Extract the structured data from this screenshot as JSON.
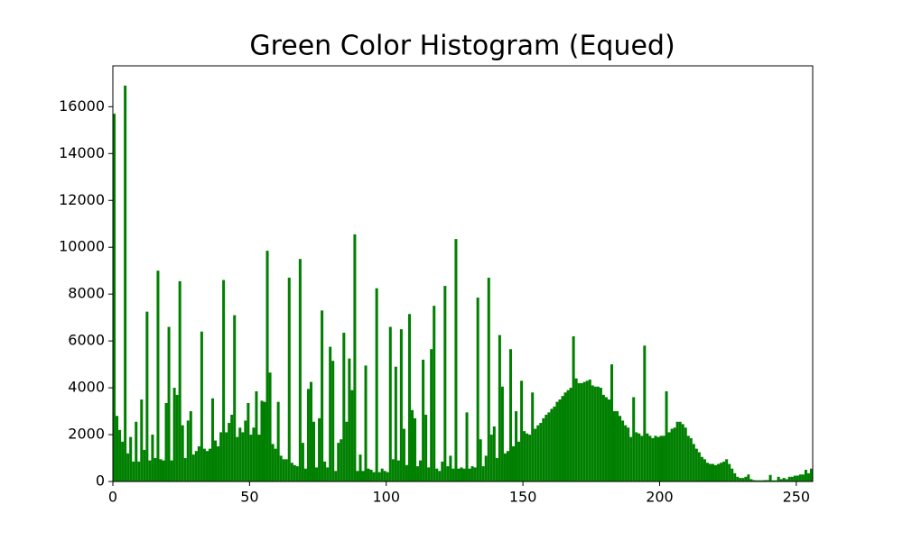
{
  "chart_data": {
    "type": "histogram",
    "title": "Green Color Histogram (Equed)",
    "color": "#008000",
    "bins": [
      0,
      1,
      2,
      3,
      4,
      5,
      6,
      7,
      8,
      9,
      10,
      11,
      12,
      13,
      14,
      15,
      16,
      17,
      18,
      19,
      20,
      21,
      22,
      23,
      24,
      25,
      26,
      27,
      28,
      29,
      30,
      31,
      32,
      33,
      34,
      35,
      36,
      37,
      38,
      39,
      40,
      41,
      42,
      43,
      44,
      45,
      46,
      47,
      48,
      49,
      50,
      51,
      52,
      53,
      54,
      55,
      56,
      57,
      58,
      59,
      60,
      61,
      62,
      63,
      64,
      65,
      66,
      67,
      68,
      69,
      70,
      71,
      72,
      73,
      74,
      75,
      76,
      77,
      78,
      79,
      80,
      81,
      82,
      83,
      84,
      85,
      86,
      87,
      88,
      89,
      90,
      91,
      92,
      93,
      94,
      95,
      96,
      97,
      98,
      99,
      100,
      101,
      102,
      103,
      104,
      105,
      106,
      107,
      108,
      109,
      110,
      111,
      112,
      113,
      114,
      115,
      116,
      117,
      118,
      119,
      120,
      121,
      122,
      123,
      124,
      125,
      126,
      127,
      128,
      129,
      130,
      131,
      132,
      133,
      134,
      135,
      136,
      137,
      138,
      139,
      140,
      141,
      142,
      143,
      144,
      145,
      146,
      147,
      148,
      149,
      150,
      151,
      152,
      153,
      154,
      155,
      156,
      157,
      158,
      159,
      160,
      161,
      162,
      163,
      164,
      165,
      166,
      167,
      168,
      169,
      170,
      171,
      172,
      173,
      174,
      175,
      176,
      177,
      178,
      179,
      180,
      181,
      182,
      183,
      184,
      185,
      186,
      187,
      188,
      189,
      190,
      191,
      192,
      193,
      194,
      195,
      196,
      197,
      198,
      199,
      200,
      201,
      202,
      203,
      204,
      205,
      206,
      207,
      208,
      209,
      210,
      211,
      212,
      213,
      214,
      215,
      216,
      217,
      218,
      219,
      220,
      221,
      222,
      223,
      224,
      225,
      226,
      227,
      228,
      229,
      230,
      231,
      232,
      233,
      234,
      235,
      236,
      237,
      238,
      239,
      240,
      241,
      242,
      243,
      244,
      245,
      246,
      247,
      248,
      249,
      250,
      251,
      252,
      253,
      254,
      255,
      256
    ],
    "counts": [
      15700,
      2800,
      2200,
      1700,
      16900,
      1200,
      1900,
      850,
      2550,
      850,
      3500,
      1350,
      7250,
      900,
      2000,
      1000,
      9000,
      950,
      900,
      3350,
      6600,
      900,
      4000,
      3700,
      8550,
      2400,
      1000,
      2600,
      3000,
      1150,
      1300,
      1500,
      6400,
      1400,
      1300,
      1400,
      3550,
      1750,
      1500,
      2100,
      8600,
      2100,
      2500,
      2850,
      7100,
      1900,
      2300,
      2100,
      2600,
      3350,
      2000,
      2300,
      3850,
      2000,
      3450,
      3400,
      9850,
      4650,
      1600,
      1400,
      3400,
      1100,
      950,
      950,
      8700,
      800,
      700,
      650,
      9500,
      1650,
      550,
      3950,
      4250,
      2550,
      600,
      2700,
      7300,
      850,
      600,
      5750,
      5150,
      450,
      1650,
      1800,
      6350,
      2550,
      5250,
      3900,
      10550,
      450,
      1150,
      450,
      4950,
      550,
      500,
      400,
      8250,
      400,
      550,
      450,
      400,
      6600,
      950,
      4900,
      900,
      6500,
      2250,
      700,
      7150,
      3050,
      2700,
      650,
      900,
      5200,
      2850,
      600,
      5650,
      7500,
      550,
      450,
      850,
      8350,
      650,
      1100,
      550,
      10350,
      550,
      600,
      550,
      2950,
      550,
      650,
      600,
      7850,
      1800,
      650,
      1100,
      8700,
      2000,
      2350,
      1000,
      6250,
      4050,
      1200,
      1300,
      5650,
      1500,
      3000,
      1700,
      4300,
      2150,
      2050,
      2000,
      3800,
      2250,
      2400,
      2500,
      2700,
      2850,
      2950,
      3100,
      3200,
      3400,
      3500,
      3650,
      3800,
      3900,
      4000,
      6200,
      4400,
      4200,
      4200,
      4250,
      4300,
      4350,
      4100,
      4050,
      4050,
      4000,
      3700,
      3600,
      3500,
      5000,
      3000,
      3000,
      2800,
      2600,
      2400,
      2300,
      1900,
      3600,
      2100,
      2050,
      1950,
      5800,
      2050,
      1950,
      1850,
      1950,
      1900,
      1950,
      1950,
      3850,
      2100,
      2250,
      2300,
      2550,
      2550,
      2450,
      2300,
      1950,
      1850,
      1600,
      1400,
      1250,
      1050,
      950,
      800,
      750,
      750,
      700,
      750,
      800,
      850,
      950,
      750,
      550,
      350,
      200,
      150,
      150,
      200,
      300,
      100,
      60,
      50,
      50,
      50,
      60,
      60,
      280,
      50,
      50,
      200,
      100,
      150,
      100,
      200,
      200,
      250,
      250,
      300,
      300,
      500,
      350,
      550
    ],
    "xlim": [
      0,
      256
    ],
    "ylim": [
      0,
      17745
    ],
    "xticks": [
      0,
      50,
      100,
      150,
      200,
      250
    ],
    "yticks": [
      0,
      2000,
      4000,
      6000,
      8000,
      10000,
      12000,
      14000,
      16000
    ]
  }
}
